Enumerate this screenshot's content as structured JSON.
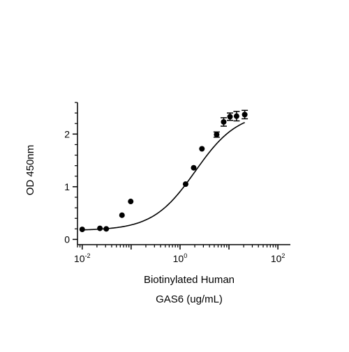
{
  "chart_data": {
    "type": "scatter",
    "title": "",
    "xlabel_lines": [
      "Biotinylated Human",
      "GAS6 (ug/mL)"
    ],
    "ylabel": "OD 450nm",
    "x_scale": "log10",
    "xlim": [
      0.008,
      180
    ],
    "ylim": [
      -0.1,
      2.6
    ],
    "x_ticks": [
      {
        "value": 0.01,
        "base": "10",
        "exp": "-2"
      },
      {
        "value": 1,
        "base": "10",
        "exp": "0"
      },
      {
        "value": 100,
        "base": "10",
        "exp": "2"
      }
    ],
    "y_ticks": [
      {
        "value": 0,
        "label": "0"
      },
      {
        "value": 1,
        "label": "1"
      },
      {
        "value": 2,
        "label": "2"
      }
    ],
    "grid": false,
    "legend": "none",
    "colors": {
      "marker": "#000000",
      "line": "#000000"
    },
    "series": [
      {
        "points": [
          {
            "x": 0.01,
            "y": 0.19,
            "err": 0
          },
          {
            "x": 0.023,
            "y": 0.21,
            "err": 0
          },
          {
            "x": 0.031,
            "y": 0.2,
            "err": 0
          },
          {
            "x": 0.065,
            "y": 0.46,
            "err": 0
          },
          {
            "x": 0.098,
            "y": 0.72,
            "err": 0
          },
          {
            "x": 1.3,
            "y": 1.05,
            "err": 0
          },
          {
            "x": 1.9,
            "y": 1.36,
            "err": 0
          },
          {
            "x": 2.8,
            "y": 1.72,
            "err": 0
          },
          {
            "x": 5.6,
            "y": 1.99,
            "err": 0.05
          },
          {
            "x": 7.8,
            "y": 2.23,
            "err": 0.08
          },
          {
            "x": 10.5,
            "y": 2.33,
            "err": 0.07
          },
          {
            "x": 14.3,
            "y": 2.34,
            "err": 0.09
          },
          {
            "x": 21,
            "y": 2.37,
            "err": 0.08
          }
        ],
        "fit": {
          "model": "4PL",
          "bottom": 0.17,
          "top": 2.42,
          "ec50": 2.05,
          "hill": 1.0
        }
      }
    ]
  }
}
